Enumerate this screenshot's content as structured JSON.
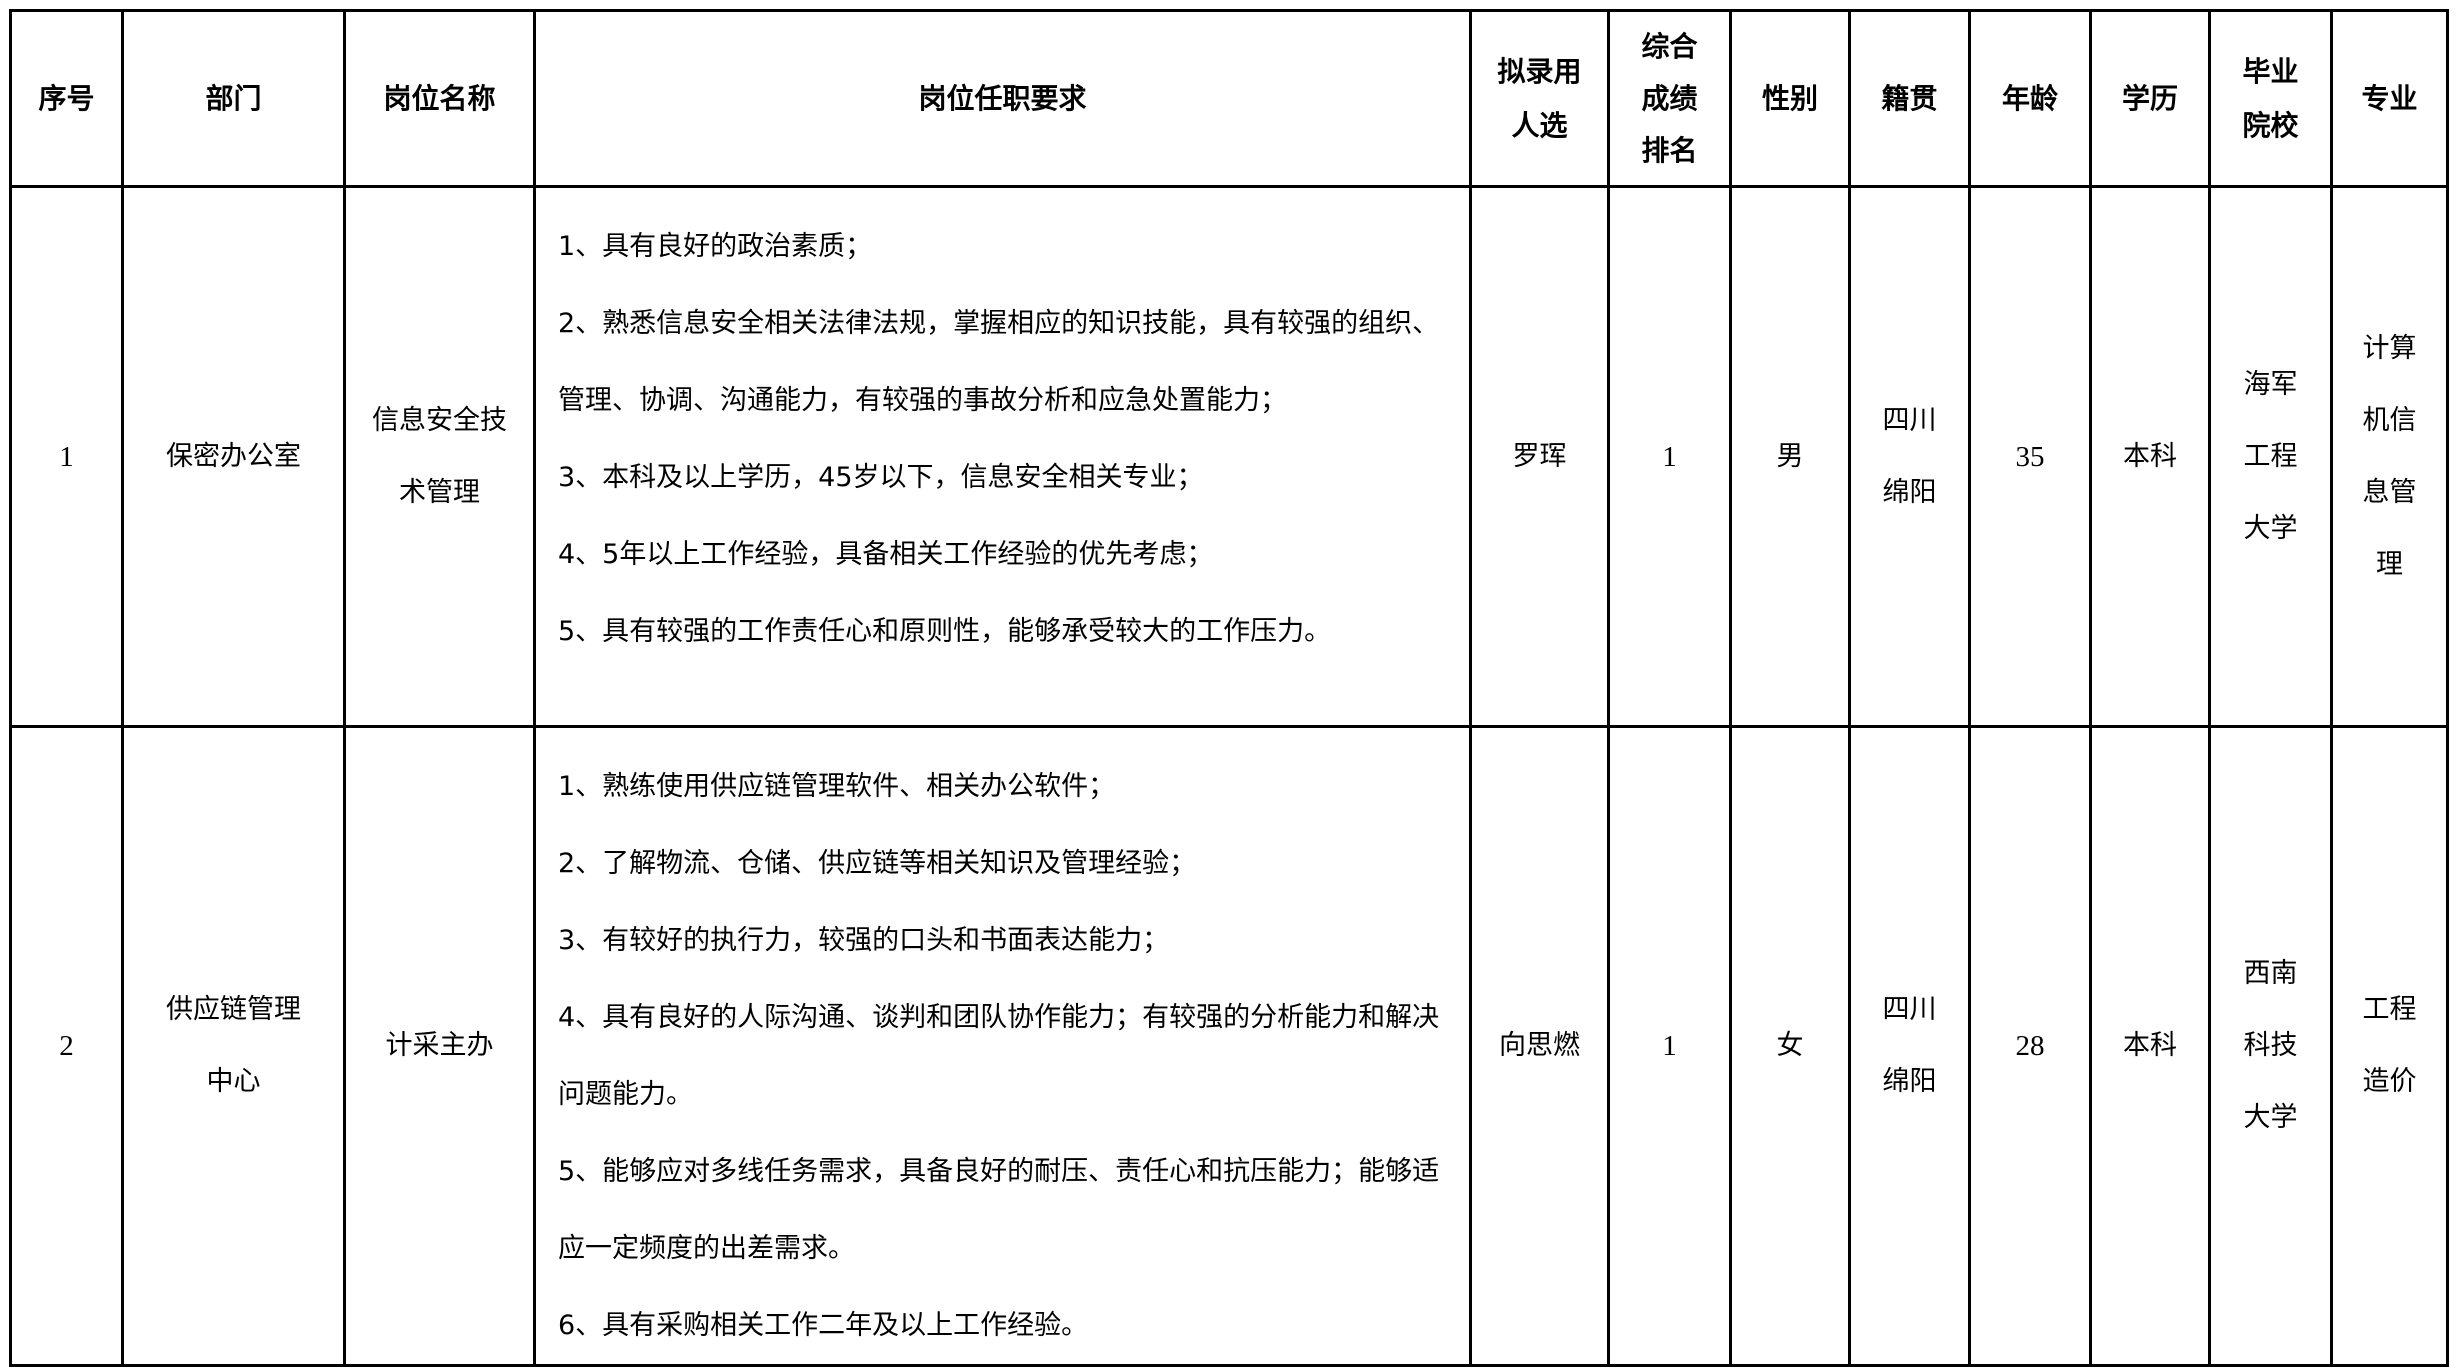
{
  "headers": [
    "序号",
    "部门",
    "岗位名称",
    "岗位任职要求",
    "拟录用人选",
    "综合成绩排名",
    "性别",
    "籍贯",
    "年龄",
    "学历",
    "毕业院校",
    "专业"
  ],
  "header_lines": {
    "candidate": [
      "拟录用",
      "人选"
    ],
    "rank": [
      "综合",
      "成绩",
      "排名"
    ],
    "school": [
      "毕业",
      "院校"
    ]
  },
  "rows": [
    {
      "index": "1",
      "department": [
        "保密办公室"
      ],
      "position": [
        "信息安全技",
        "术管理"
      ],
      "requirements": [
        "1、具有良好的政治素质；",
        "2、熟悉信息安全相关法律法规，掌握相应的知识技能，具有较强的组织、管理、协调、沟通能力，有较强的事故分析和应急处置能力；",
        "3、本科及以上学历，45岁以下，信息安全相关专业；",
        "4、5年以上工作经验，具备相关工作经验的优先考虑；",
        "5、具有较强的工作责任心和原则性，能够承受较大的工作压力。"
      ],
      "candidate": "罗珲",
      "rank": "1",
      "gender": "男",
      "origin": [
        "四川",
        "绵阳"
      ],
      "age": "35",
      "education": "本科",
      "school": [
        "海军",
        "工程",
        "大学"
      ],
      "major": [
        "计算",
        "机信",
        "息管",
        "理"
      ]
    },
    {
      "index": "2",
      "department": [
        "供应链管理",
        "中心"
      ],
      "position": [
        "计采主办"
      ],
      "requirements": [
        "1、熟练使用供应链管理软件、相关办公软件；",
        "2、了解物流、仓储、供应链等相关知识及管理经验；",
        "3、有较好的执行力，较强的口头和书面表达能力；",
        "4、具有良好的人际沟通、谈判和团队协作能力；有较强的分析能力和解决问题能力。",
        "5、能够应对多线任务需求，具备良好的耐压、责任心和抗压能力；能够适应一定频度的出差需求。",
        "6、具有采购相关工作二年及以上工作经验。"
      ],
      "candidate": "向思燃",
      "rank": "1",
      "gender": "女",
      "origin": [
        "四川",
        "绵阳"
      ],
      "age": "28",
      "education": "本科",
      "school": [
        "西南",
        "科技",
        "大学"
      ],
      "major": [
        "工程",
        "造价"
      ]
    }
  ]
}
